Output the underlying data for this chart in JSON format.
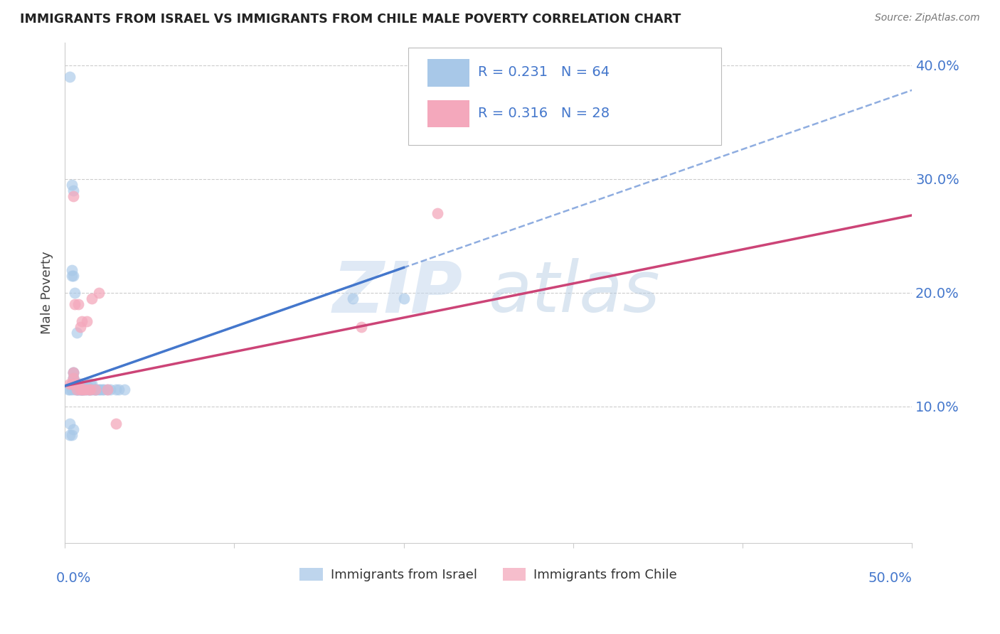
{
  "title": "IMMIGRANTS FROM ISRAEL VS IMMIGRANTS FROM CHILE MALE POVERTY CORRELATION CHART",
  "source": "Source: ZipAtlas.com",
  "ylabel": "Male Poverty",
  "legend_israel": "Immigrants from Israel",
  "legend_chile": "Immigrants from Chile",
  "israel_R": "0.231",
  "israel_N": "64",
  "chile_R": "0.316",
  "chile_N": "28",
  "israel_color": "#a8c8e8",
  "chile_color": "#f4a8bc",
  "israel_line_color": "#4477cc",
  "chile_line_color": "#cc4477",
  "watermark_zip": "ZIP",
  "watermark_atlas": "atlas",
  "xlim": [
    0.0,
    0.5
  ],
  "ylim": [
    -0.02,
    0.42
  ],
  "plot_ylim": [
    0.0,
    0.42
  ],
  "yticks": [
    0.1,
    0.2,
    0.3,
    0.4
  ],
  "xticks": [
    0.0,
    0.1,
    0.2,
    0.3,
    0.4,
    0.5
  ],
  "israel_x": [
    0.002,
    0.003,
    0.004,
    0.004,
    0.005,
    0.005,
    0.005,
    0.005,
    0.005,
    0.005,
    0.006,
    0.006,
    0.007,
    0.007,
    0.007,
    0.008,
    0.008,
    0.008,
    0.008,
    0.009,
    0.009,
    0.009,
    0.01,
    0.01,
    0.01,
    0.011,
    0.011,
    0.012,
    0.012,
    0.013,
    0.013,
    0.014,
    0.014,
    0.015,
    0.015,
    0.016,
    0.016,
    0.017,
    0.018,
    0.018,
    0.019,
    0.02,
    0.021,
    0.022,
    0.023,
    0.025,
    0.027,
    0.03,
    0.032,
    0.035,
    0.003,
    0.004,
    0.004,
    0.004,
    0.005,
    0.005,
    0.006,
    0.007,
    0.17,
    0.2,
    0.003,
    0.003,
    0.004,
    0.005
  ],
  "israel_y": [
    0.115,
    0.115,
    0.115,
    0.12,
    0.12,
    0.12,
    0.125,
    0.125,
    0.13,
    0.13,
    0.115,
    0.12,
    0.115,
    0.12,
    0.115,
    0.115,
    0.12,
    0.115,
    0.12,
    0.115,
    0.12,
    0.115,
    0.115,
    0.12,
    0.115,
    0.115,
    0.115,
    0.12,
    0.115,
    0.12,
    0.115,
    0.115,
    0.115,
    0.115,
    0.12,
    0.115,
    0.12,
    0.115,
    0.115,
    0.115,
    0.115,
    0.115,
    0.115,
    0.115,
    0.115,
    0.115,
    0.115,
    0.115,
    0.115,
    0.115,
    0.39,
    0.295,
    0.22,
    0.215,
    0.29,
    0.215,
    0.2,
    0.165,
    0.195,
    0.195,
    0.085,
    0.075,
    0.075,
    0.08
  ],
  "chile_x": [
    0.003,
    0.004,
    0.005,
    0.005,
    0.005,
    0.006,
    0.006,
    0.007,
    0.007,
    0.008,
    0.008,
    0.009,
    0.009,
    0.01,
    0.01,
    0.011,
    0.012,
    0.013,
    0.014,
    0.015,
    0.016,
    0.018,
    0.02,
    0.025,
    0.175,
    0.22,
    0.03,
    0.005
  ],
  "chile_y": [
    0.12,
    0.12,
    0.125,
    0.13,
    0.12,
    0.12,
    0.19,
    0.12,
    0.115,
    0.12,
    0.19,
    0.115,
    0.17,
    0.115,
    0.175,
    0.115,
    0.115,
    0.175,
    0.115,
    0.115,
    0.195,
    0.115,
    0.2,
    0.115,
    0.17,
    0.27,
    0.085,
    0.285
  ],
  "israel_line_intercept": 0.118,
  "israel_line_slope": 0.52,
  "chile_line_intercept": 0.118,
  "chile_line_slope": 0.3
}
